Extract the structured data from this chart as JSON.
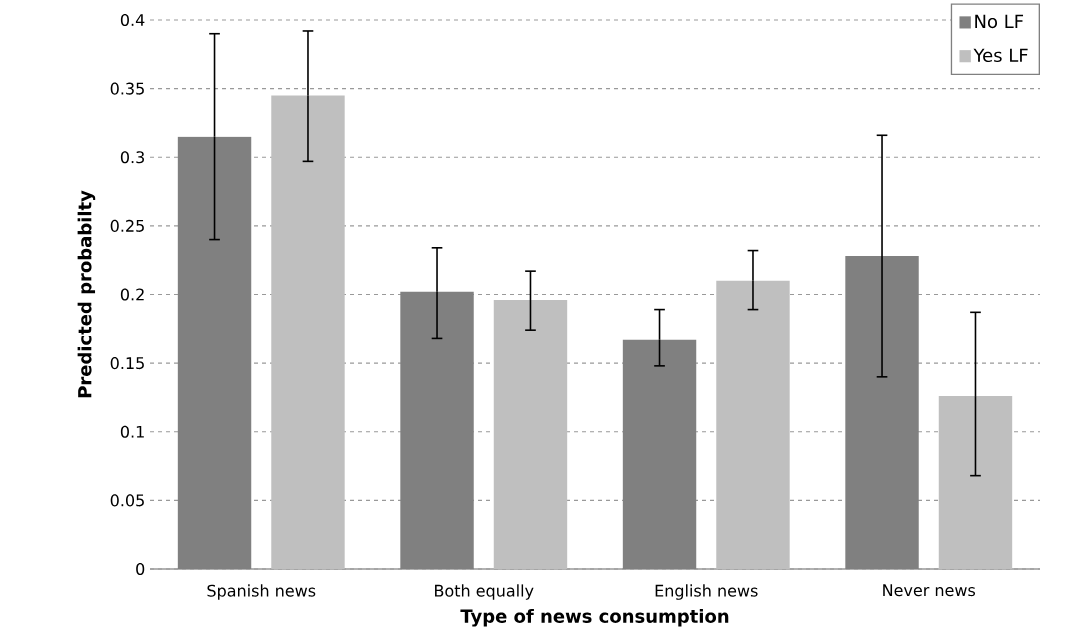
{
  "chart_data": {
    "type": "bar",
    "xlabel": "Type of news consumption",
    "ylabel": "Predicted probabilty",
    "categories": [
      "Spanish news",
      "Both equally",
      "English news",
      "Never news"
    ],
    "series": [
      {
        "name": "No LF",
        "color": "#808080",
        "values": [
          0.315,
          0.202,
          0.167,
          0.228
        ],
        "errors": [
          [
            0.24,
            0.39
          ],
          [
            0.168,
            0.234
          ],
          [
            0.148,
            0.189
          ],
          [
            0.14,
            0.316
          ]
        ]
      },
      {
        "name": "Yes LF",
        "color": "#bfbfbf",
        "values": [
          0.345,
          0.196,
          0.21,
          0.126
        ],
        "errors": [
          [
            0.297,
            0.392
          ],
          [
            0.174,
            0.217
          ],
          [
            0.189,
            0.232
          ],
          [
            0.068,
            0.187
          ]
        ]
      }
    ],
    "ylim": [
      0,
      0.4
    ],
    "yticks": [
      0,
      0.05,
      0.1,
      0.15,
      0.2,
      0.25,
      0.3,
      0.35,
      0.4
    ],
    "grid": "y",
    "legend": "top right"
  }
}
